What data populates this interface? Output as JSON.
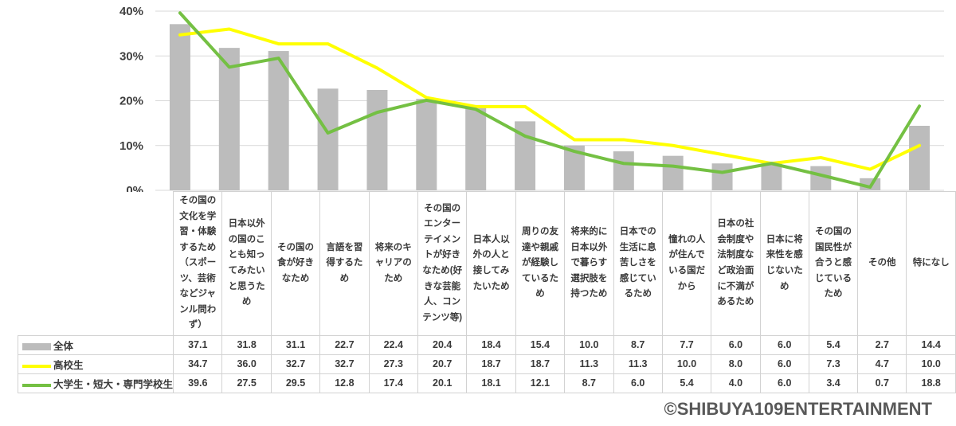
{
  "copyright": "©SHIBUYA109ENTERTAINMENT",
  "colors": {
    "bar": "#bcbcbc",
    "highschool_line": "#ffff00",
    "university_line": "#74c043",
    "grid": "#d9d9d9",
    "table_border": "#d2d2d2",
    "text": "#404040",
    "copyright": "#595959"
  },
  "chart_data": {
    "type": "bar",
    "subtype": "bar+line combo with data table",
    "title": "",
    "xlabel": "",
    "ylabel": "",
    "ylim": [
      0,
      40
    ],
    "yticks": [
      "0%",
      "10%",
      "20%",
      "30%",
      "40%"
    ],
    "grid": true,
    "legend_position": "table-left",
    "categories": [
      "その国の文化を学習・体験するため（スポーツ、芸術などジャンル問わず）",
      "日本以外の国のことも知ってみたいと思うため",
      "その国の食が好きなため",
      "言語を習得するため",
      "将来のキャリアのため",
      "その国のエンターテイメントが好きなため(好きな芸能人、コンテンツ等)",
      "日本人以外の人と接してみたいため",
      "周りの友達や親戚が経験しているため",
      "将来的に日本以外で暮らす選択肢を持つため",
      "日本での生活に息苦しさを感じているため",
      "憧れの人が住んでいる国だから",
      "日本の社会制度や法制度など政治面に不満があるため",
      "日本に将来性を感じないため",
      "その国の国民性が合うと感じているため",
      "その他",
      "特になし"
    ],
    "series": [
      {
        "name": "全体",
        "type": "bar",
        "color": "#bcbcbc",
        "values": [
          37.1,
          31.8,
          31.1,
          22.7,
          22.4,
          20.4,
          18.4,
          15.4,
          10.0,
          8.7,
          7.7,
          6.0,
          6.0,
          5.4,
          2.7,
          14.4
        ]
      },
      {
        "name": "高校生",
        "type": "line",
        "color": "#ffff00",
        "values": [
          34.7,
          36.0,
          32.7,
          32.7,
          27.3,
          20.7,
          18.7,
          18.7,
          11.3,
          11.3,
          10.0,
          8.0,
          6.0,
          7.3,
          4.7,
          10.0
        ]
      },
      {
        "name": "大学生・短大・専門学校生",
        "type": "line",
        "color": "#74c043",
        "values": [
          39.6,
          27.5,
          29.5,
          12.8,
          17.4,
          20.1,
          18.1,
          12.1,
          8.7,
          6.0,
          5.4,
          4.0,
          6.0,
          3.4,
          0.7,
          18.8
        ]
      }
    ]
  }
}
